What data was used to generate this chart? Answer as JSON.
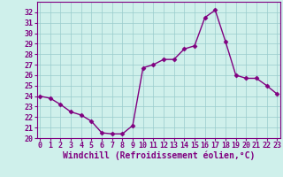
{
  "x": [
    0,
    1,
    2,
    3,
    4,
    5,
    6,
    7,
    8,
    9,
    10,
    11,
    12,
    13,
    14,
    15,
    16,
    17,
    18,
    19,
    20,
    21,
    22,
    23
  ],
  "y": [
    24,
    23.8,
    23.2,
    22.5,
    22.2,
    21.6,
    20.5,
    20.4,
    20.4,
    21.2,
    26.7,
    27.0,
    27.5,
    27.5,
    28.5,
    28.8,
    31.5,
    32.2,
    29.2,
    26.0,
    25.7,
    25.7,
    25.0,
    24.2
  ],
  "line_color": "#800080",
  "marker": "D",
  "marker_size": 2.5,
  "linewidth": 1.0,
  "bg_color": "#cff0eb",
  "grid_color": "#99cccc",
  "xlabel": "Windchill (Refroidissement éolien,°C)",
  "xlabel_color": "#800080",
  "xlabel_fontsize": 7,
  "tick_color": "#800080",
  "tick_fontsize": 6,
  "ylim": [
    20,
    33
  ],
  "yticks": [
    20,
    21,
    22,
    23,
    24,
    25,
    26,
    27,
    28,
    29,
    30,
    31,
    32
  ],
  "xticks": [
    0,
    1,
    2,
    3,
    4,
    5,
    6,
    7,
    8,
    9,
    10,
    11,
    12,
    13,
    14,
    15,
    16,
    17,
    18,
    19,
    20,
    21,
    22,
    23
  ],
  "spine_color": "#800080",
  "xlim": [
    -0.3,
    23.3
  ]
}
